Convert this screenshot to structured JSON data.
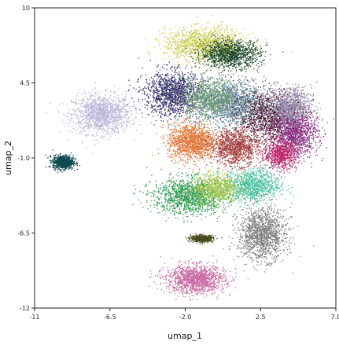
{
  "chart_data": {
    "type": "scatter",
    "title": "",
    "xlabel": "umap_1",
    "ylabel": "umap_2",
    "xlim": [
      -11,
      7
    ],
    "ylim": [
      -12,
      10
    ],
    "x_ticks": [
      -11,
      -6.5,
      -2.0,
      2.5,
      7.0
    ],
    "x_tick_labels": [
      "-11",
      "-6.5",
      "-2.0",
      "2.5",
      "7.0"
    ],
    "y_ticks": [
      10,
      4.5,
      -1.0,
      -6.5,
      -12
    ],
    "y_tick_labels": [
      "10",
      "4.5",
      "-1.0",
      "-6.5",
      "-12"
    ],
    "grid": false,
    "legend": "none",
    "clusters": [
      {
        "color": "#b8b6d8",
        "center": [
          -7.0,
          2.2
        ],
        "spread": [
          1.6,
          1.3
        ],
        "density": 1.0
      },
      {
        "color": "#0e4a4f",
        "center": [
          -9.3,
          -1.3
        ],
        "spread": [
          0.55,
          0.45
        ],
        "density": 0.6
      },
      {
        "color": "#c8cc52",
        "center": [
          -0.8,
          7.3
        ],
        "spread": [
          2.2,
          1.1
        ],
        "density": 1.0
      },
      {
        "color": "#1f4a2e",
        "center": [
          0.7,
          6.6
        ],
        "spread": [
          1.6,
          0.9
        ],
        "density": 0.8
      },
      {
        "color": "#34336b",
        "center": [
          -2.7,
          3.7
        ],
        "spread": [
          1.6,
          1.5
        ],
        "density": 1.0
      },
      {
        "color": "#5e7e9c",
        "center": [
          0.8,
          3.0
        ],
        "spread": [
          1.8,
          1.5
        ],
        "density": 1.0
      },
      {
        "color": "#6d9a72",
        "center": [
          -0.5,
          3.4
        ],
        "spread": [
          1.6,
          1.3
        ],
        "density": 0.7
      },
      {
        "color": "#4a1f35",
        "center": [
          3.2,
          2.0
        ],
        "spread": [
          1.8,
          1.7
        ],
        "density": 1.0
      },
      {
        "color": "#8c2f86",
        "center": [
          4.5,
          0.8
        ],
        "spread": [
          1.3,
          1.6
        ],
        "density": 0.9
      },
      {
        "color": "#9a8fb2",
        "center": [
          4.2,
          2.8
        ],
        "spread": [
          1.2,
          1.2
        ],
        "density": 0.6
      },
      {
        "color": "#e0783a",
        "center": [
          -1.6,
          0.2
        ],
        "spread": [
          1.3,
          1.2
        ],
        "density": 1.0
      },
      {
        "color": "#a33c3c",
        "center": [
          1.0,
          -0.2
        ],
        "spread": [
          1.3,
          1.2
        ],
        "density": 0.8
      },
      {
        "color": "#c1266b",
        "center": [
          3.7,
          -0.8
        ],
        "spread": [
          0.9,
          0.9
        ],
        "density": 0.5
      },
      {
        "color": "#2f9b52",
        "center": [
          -1.7,
          -3.8
        ],
        "spread": [
          2.0,
          1.2
        ],
        "density": 1.0
      },
      {
        "color": "#4dc0a0",
        "center": [
          2.0,
          -3.0
        ],
        "spread": [
          1.5,
          1.1
        ],
        "density": 0.8
      },
      {
        "color": "#a8c64a",
        "center": [
          -0.2,
          -3.2
        ],
        "spread": [
          1.2,
          1.0
        ],
        "density": 0.5
      },
      {
        "color": "#7c7e7a",
        "center": [
          2.6,
          -6.6
        ],
        "spread": [
          1.3,
          1.7
        ],
        "density": 1.0
      },
      {
        "color": "#4a4d1f",
        "center": [
          -1.0,
          -6.9
        ],
        "spread": [
          0.6,
          0.22
        ],
        "density": 0.4
      },
      {
        "color": "#c86aa4",
        "center": [
          -1.4,
          -9.9
        ],
        "spread": [
          1.6,
          0.95
        ],
        "density": 1.0
      }
    ]
  }
}
